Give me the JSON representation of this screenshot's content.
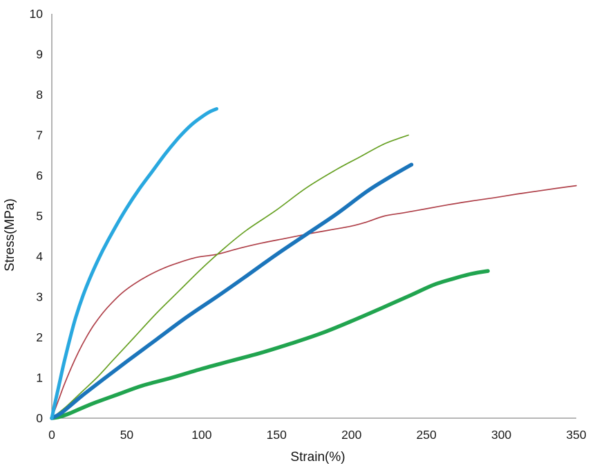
{
  "chart": {
    "x_axis_title": "Strain(%)",
    "y_axis_title": "Stress(MPa)"
  },
  "colors": {
    "background": "#ffffff",
    "axis_line": "#8c8c8c",
    "tick_text": "#1a1a1a",
    "series_light_blue": "#29a8df",
    "series_dark_red": "#af4049",
    "series_olive_green": "#66a022",
    "series_dark_blue": "#1b75bb",
    "series_green": "#21a44f"
  },
  "chart_data": {
    "type": "line",
    "title": "",
    "xlabel": "Strain(%)",
    "ylabel": "Stress(MPa)",
    "xlim": [
      0,
      350
    ],
    "ylim": [
      0,
      10
    ],
    "x_ticks": [
      0,
      50,
      100,
      150,
      200,
      250,
      300,
      350
    ],
    "y_ticks": [
      0,
      1,
      2,
      3,
      4,
      5,
      6,
      7,
      8,
      9,
      10
    ],
    "grid": false,
    "legend_position": "none",
    "series": [
      {
        "name": "thin-dark-red-curve",
        "color": "#af4049",
        "stroke_width": 1.7,
        "points": [
          [
            0,
            0
          ],
          [
            4,
            0.4
          ],
          [
            8,
            0.8
          ],
          [
            13,
            1.25
          ],
          [
            18,
            1.65
          ],
          [
            23,
            2.0
          ],
          [
            28,
            2.3
          ],
          [
            34,
            2.6
          ],
          [
            40,
            2.85
          ],
          [
            47,
            3.1
          ],
          [
            55,
            3.32
          ],
          [
            64,
            3.52
          ],
          [
            74,
            3.7
          ],
          [
            85,
            3.85
          ],
          [
            97,
            3.98
          ],
          [
            110,
            4.05
          ],
          [
            125,
            4.2
          ],
          [
            140,
            4.33
          ],
          [
            155,
            4.44
          ],
          [
            170,
            4.55
          ],
          [
            185,
            4.65
          ],
          [
            200,
            4.75
          ],
          [
            210,
            4.85
          ],
          [
            222,
            5.0
          ],
          [
            235,
            5.08
          ],
          [
            250,
            5.18
          ],
          [
            265,
            5.28
          ],
          [
            280,
            5.37
          ],
          [
            295,
            5.45
          ],
          [
            310,
            5.54
          ],
          [
            325,
            5.62
          ],
          [
            338,
            5.69
          ],
          [
            350,
            5.75
          ]
        ]
      },
      {
        "name": "thin-olive-green-curve",
        "color": "#66a022",
        "stroke_width": 1.7,
        "points": [
          [
            0,
            0
          ],
          [
            10,
            0.3
          ],
          [
            20,
            0.65
          ],
          [
            30,
            1.0
          ],
          [
            40,
            1.4
          ],
          [
            55,
            2.0
          ],
          [
            70,
            2.6
          ],
          [
            85,
            3.15
          ],
          [
            100,
            3.7
          ],
          [
            115,
            4.2
          ],
          [
            130,
            4.65
          ],
          [
            150,
            5.15
          ],
          [
            170,
            5.7
          ],
          [
            190,
            6.15
          ],
          [
            205,
            6.45
          ],
          [
            220,
            6.75
          ],
          [
            230,
            6.9
          ],
          [
            238,
            7.0
          ]
        ]
      },
      {
        "name": "thick-green-curve",
        "color": "#21a44f",
        "stroke_width": 5.5,
        "points": [
          [
            0,
            0
          ],
          [
            5,
            0.03
          ],
          [
            12,
            0.12
          ],
          [
            20,
            0.25
          ],
          [
            30,
            0.4
          ],
          [
            45,
            0.6
          ],
          [
            60,
            0.8
          ],
          [
            80,
            1.0
          ],
          [
            100,
            1.22
          ],
          [
            120,
            1.42
          ],
          [
            140,
            1.62
          ],
          [
            160,
            1.85
          ],
          [
            180,
            2.1
          ],
          [
            200,
            2.4
          ],
          [
            220,
            2.72
          ],
          [
            240,
            3.05
          ],
          [
            255,
            3.3
          ],
          [
            268,
            3.45
          ],
          [
            280,
            3.57
          ],
          [
            291,
            3.64
          ]
        ]
      },
      {
        "name": "thick-dark-blue-curve",
        "color": "#1b75bb",
        "stroke_width": 5.5,
        "points": [
          [
            0,
            0
          ],
          [
            6,
            0.12
          ],
          [
            12,
            0.3
          ],
          [
            20,
            0.55
          ],
          [
            35,
            0.98
          ],
          [
            50,
            1.4
          ],
          [
            70,
            1.95
          ],
          [
            90,
            2.5
          ],
          [
            110,
            3.0
          ],
          [
            130,
            3.52
          ],
          [
            150,
            4.05
          ],
          [
            170,
            4.55
          ],
          [
            190,
            5.05
          ],
          [
            210,
            5.6
          ],
          [
            225,
            5.95
          ],
          [
            240,
            6.27
          ]
        ]
      },
      {
        "name": "thick-light-blue-curve",
        "color": "#29a8df",
        "stroke_width": 5,
        "points": [
          [
            0,
            0
          ],
          [
            2,
            0.35
          ],
          [
            5,
            0.85
          ],
          [
            8,
            1.35
          ],
          [
            12,
            1.95
          ],
          [
            16,
            2.5
          ],
          [
            21,
            3.05
          ],
          [
            27,
            3.6
          ],
          [
            34,
            4.15
          ],
          [
            42,
            4.7
          ],
          [
            50,
            5.2
          ],
          [
            58,
            5.65
          ],
          [
            67,
            6.1
          ],
          [
            76,
            6.55
          ],
          [
            85,
            6.95
          ],
          [
            93,
            7.25
          ],
          [
            100,
            7.45
          ],
          [
            105,
            7.57
          ],
          [
            108,
            7.62
          ],
          [
            110,
            7.65
          ]
        ]
      }
    ]
  }
}
